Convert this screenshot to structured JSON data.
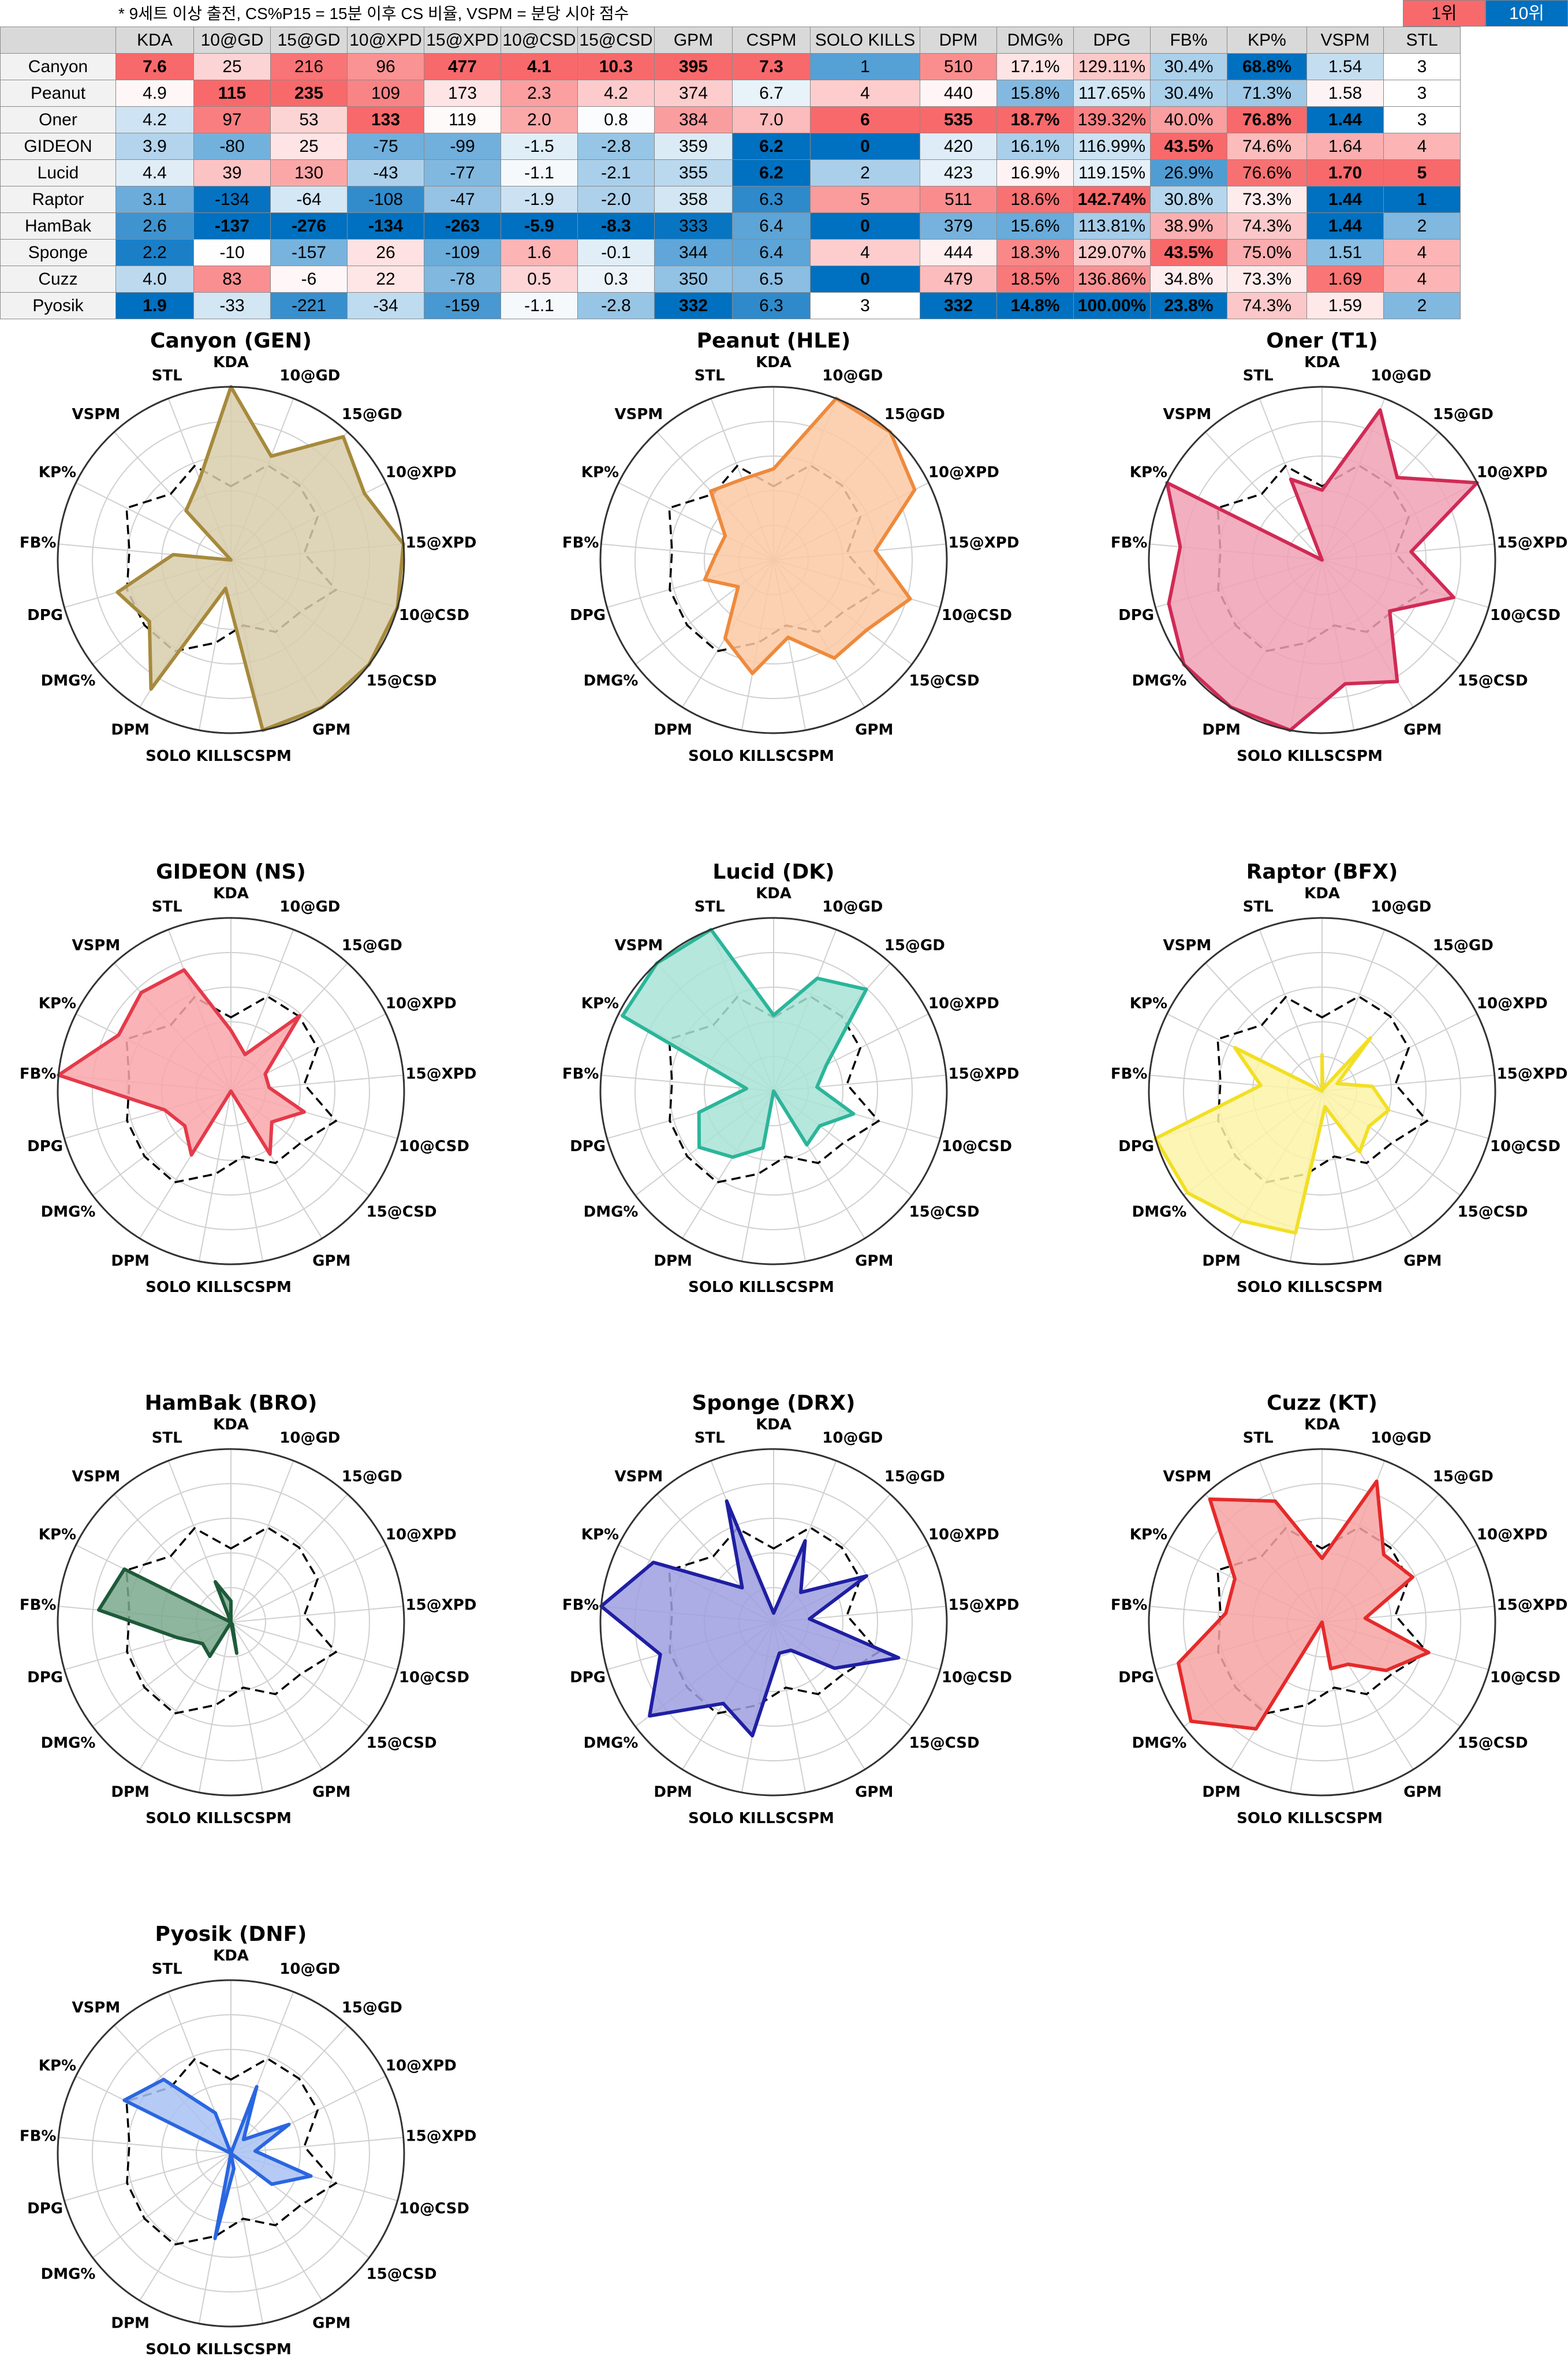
{
  "note": "* 9세트 이상 출전, CS%P15 = 15분 이후 CS 비율, VSPM = 분당 시야 점수",
  "legend": {
    "first": "1위",
    "tenth": "10위"
  },
  "colors": {
    "best": "#f8696b",
    "worst": "#0070c0",
    "mid": "#ffffff",
    "header": "#d9d9d9"
  },
  "table": {
    "columns": [
      "",
      "KDA",
      "10@GD",
      "15@GD",
      "10@XPD",
      "15@XPD",
      "10@CSD",
      "15@CSD",
      "GPM",
      "CSPM",
      "SOLO KILLS",
      "DPM",
      "DMG%",
      "DPG",
      "FB%",
      "KP%",
      "VSPM",
      "STL"
    ],
    "rows": [
      [
        "Canyon",
        "7.6",
        "25",
        "216",
        "96",
        "477",
        "4.1",
        "10.3",
        "395",
        "7.3",
        "1",
        "510",
        "17.1%",
        "129.11%",
        "30.4%",
        "68.8%",
        "1.54",
        "3"
      ],
      [
        "Peanut",
        "4.9",
        "115",
        "235",
        "109",
        "173",
        "2.3",
        "4.2",
        "374",
        "6.7",
        "4",
        "440",
        "15.8%",
        "117.65%",
        "30.4%",
        "71.3%",
        "1.58",
        "3"
      ],
      [
        "Oner",
        "4.2",
        "97",
        "53",
        "133",
        "119",
        "2.0",
        "0.8",
        "384",
        "7.0",
        "6",
        "535",
        "18.7%",
        "139.32%",
        "40.0%",
        "76.8%",
        "1.44",
        "3"
      ],
      [
        "GIDEON",
        "3.9",
        "-80",
        "25",
        "-75",
        "-99",
        "-1.5",
        "-2.8",
        "359",
        "6.2",
        "0",
        "420",
        "16.1%",
        "116.99%",
        "43.5%",
        "74.6%",
        "1.64",
        "4"
      ],
      [
        "Lucid",
        "4.4",
        "39",
        "130",
        "-43",
        "-77",
        "-1.1",
        "-2.1",
        "355",
        "6.2",
        "2",
        "423",
        "16.9%",
        "119.15%",
        "26.9%",
        "76.6%",
        "1.70",
        "5"
      ],
      [
        "Raptor",
        "3.1",
        "-134",
        "-64",
        "-108",
        "-47",
        "-1.9",
        "-2.0",
        "358",
        "6.3",
        "5",
        "511",
        "18.6%",
        "142.74%",
        "30.8%",
        "73.3%",
        "1.44",
        "1"
      ],
      [
        "HamBak",
        "2.6",
        "-137",
        "-276",
        "-134",
        "-263",
        "-5.9",
        "-8.3",
        "333",
        "6.4",
        "0",
        "379",
        "15.6%",
        "113.81%",
        "38.9%",
        "74.3%",
        "1.44",
        "2"
      ],
      [
        "Sponge",
        "2.2",
        "-10",
        "-157",
        "26",
        "-109",
        "1.6",
        "-0.1",
        "344",
        "6.4",
        "4",
        "444",
        "18.3%",
        "129.07%",
        "43.5%",
        "75.0%",
        "1.51",
        "4"
      ],
      [
        "Cuzz",
        "4.0",
        "83",
        "-6",
        "22",
        "-78",
        "0.5",
        "0.3",
        "350",
        "6.5",
        "0",
        "479",
        "18.5%",
        "136.86%",
        "34.8%",
        "73.3%",
        "1.69",
        "4"
      ],
      [
        "Pyosik",
        "1.9",
        "-33",
        "-221",
        "-34",
        "-159",
        "-1.1",
        "-2.8",
        "332",
        "6.3",
        "3",
        "332",
        "14.8%",
        "100.00%",
        "23.8%",
        "74.3%",
        "1.59",
        "2"
      ]
    ]
  },
  "chart_data": {
    "type": "radar",
    "axes": [
      "KDA",
      "10@GD",
      "15@GD",
      "10@XPD",
      "15@XPD",
      "10@CSD",
      "15@CSD",
      "GPM",
      "CSPM",
      "SOLO KILLS",
      "DPM",
      "DMG%",
      "DPG",
      "FB%",
      "KP%",
      "VSPM",
      "STL"
    ],
    "average_line": "dashed",
    "grid": true,
    "players": [
      {
        "title": "Canyon (GEN)",
        "color": "#a68a3c",
        "fill": "#d8ccab"
      },
      {
        "title": "Peanut (HLE)",
        "color": "#ee8a3c",
        "fill": "#fbc9a4"
      },
      {
        "title": "Oner (T1)",
        "color": "#d02a55",
        "fill": "#f0a1b5"
      },
      {
        "title": "GIDEON (NS)",
        "color": "#e53a4a",
        "fill": "#f9a7ab"
      },
      {
        "title": "Lucid (DK)",
        "color": "#2bb59a",
        "fill": "#a8e3d6"
      },
      {
        "title": "Raptor (BFX)",
        "color": "#f2df24",
        "fill": "#fbf3a7"
      },
      {
        "title": "HamBak (BRO)",
        "color": "#1e5a3a",
        "fill": "#7aa88c"
      },
      {
        "title": "Sponge (DRX)",
        "color": "#1f1fa3",
        "fill": "#9f9fe0"
      },
      {
        "title": "Cuzz (KT)",
        "color": "#e52a2a",
        "fill": "#f7a3a3"
      },
      {
        "title": "Pyosik (DNF)",
        "color": "#2a66e0",
        "fill": "#a8c2f3"
      }
    ]
  }
}
